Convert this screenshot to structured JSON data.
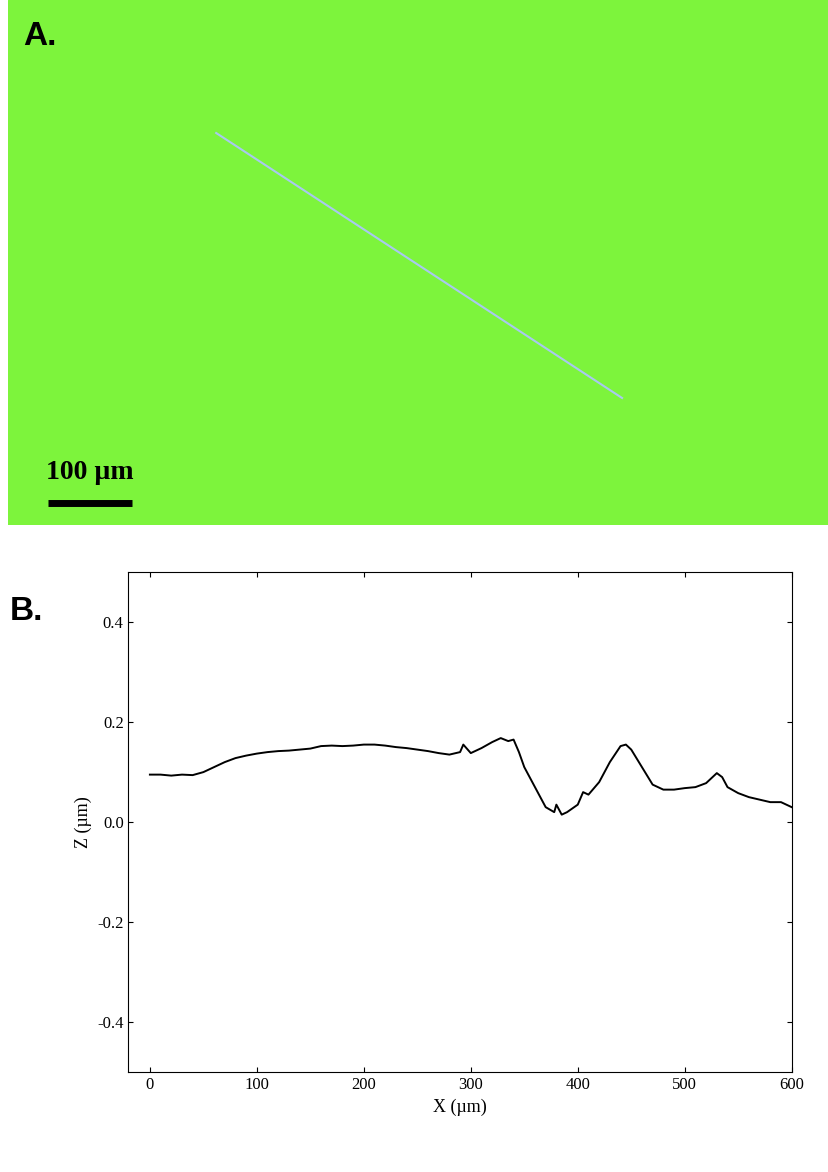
{
  "chart_data": [
    {
      "type": "image",
      "title": "A.",
      "scale_bar": "100 µm",
      "color": "#7df43c"
    },
    {
      "type": "line",
      "title": "B.",
      "x_label": "X (µm)",
      "y_label": "Z (µm)",
      "x": [
        0,
        10,
        20,
        30,
        40,
        50,
        60,
        70,
        80,
        90,
        100,
        110,
        120,
        130,
        140,
        150,
        160,
        170,
        180,
        190,
        200,
        210,
        220,
        230,
        240,
        250,
        260,
        270,
        280,
        290,
        293,
        300,
        310,
        320,
        328,
        335,
        340,
        345,
        350,
        360,
        370,
        378,
        380,
        385,
        390,
        400,
        405,
        410,
        420,
        430,
        440,
        445,
        450,
        460,
        470,
        480,
        490,
        500,
        510,
        520,
        530,
        535,
        540,
        550,
        560,
        570,
        580,
        590,
        600
      ],
      "values": [
        0.095,
        0.095,
        0.093,
        0.095,
        0.094,
        0.1,
        0.11,
        0.12,
        0.128,
        0.133,
        0.137,
        0.14,
        0.142,
        0.143,
        0.145,
        0.147,
        0.152,
        0.153,
        0.152,
        0.153,
        0.155,
        0.155,
        0.153,
        0.15,
        0.148,
        0.145,
        0.142,
        0.138,
        0.135,
        0.14,
        0.155,
        0.138,
        0.148,
        0.16,
        0.168,
        0.162,
        0.165,
        0.14,
        0.11,
        0.07,
        0.03,
        0.02,
        0.035,
        0.015,
        0.02,
        0.035,
        0.06,
        0.055,
        0.08,
        0.12,
        0.152,
        0.155,
        0.145,
        0.11,
        0.075,
        0.065,
        0.065,
        0.068,
        0.07,
        0.078,
        0.098,
        0.09,
        0.07,
        0.058,
        0.05,
        0.045,
        0.04,
        0.04,
        0.03
      ],
      "color": "#000000",
      "xlim": [
        -20,
        600
      ],
      "ylim": [
        -0.5,
        0.5
      ],
      "xticks": [
        0,
        100,
        200,
        300,
        400,
        500,
        600
      ],
      "yticks": [
        -0.4,
        -0.2,
        0.0,
        0.2,
        0.4
      ]
    }
  ]
}
